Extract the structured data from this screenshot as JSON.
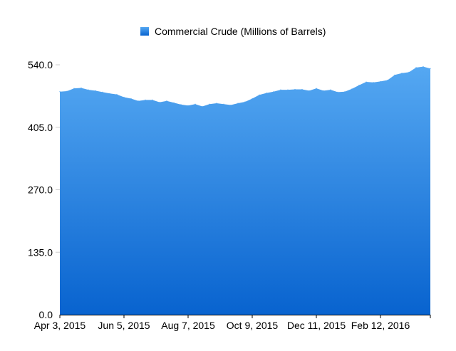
{
  "chart_data": {
    "type": "area",
    "title": "",
    "xlabel": "",
    "ylabel": "",
    "legend": {
      "label": "Commercial Crude (Millions of Barrels)",
      "placement": "top-center"
    },
    "colors": {
      "fill_top": "#55a8f2",
      "fill_bottom": "#0863cf",
      "axis": "#000000",
      "text": "#000000"
    },
    "ylim": [
      0,
      540
    ],
    "y_ticks": [
      "0.0",
      "135.0",
      "270.0",
      "405.0",
      "540.0"
    ],
    "x_ticks": [
      {
        "label": "Apr 3, 2015",
        "index": 0
      },
      {
        "label": "Jun 5, 2015",
        "index": 9
      },
      {
        "label": "Aug 7, 2015",
        "index": 18
      },
      {
        "label": "Oct 9, 2015",
        "index": 27
      },
      {
        "label": "Dec 11, 2015",
        "index": 36
      },
      {
        "label": "Feb 12, 2016",
        "index": 45
      }
    ],
    "series": [
      {
        "values": [
          482,
          483,
          489,
          490,
          486,
          484,
          481,
          478,
          476,
          470,
          467,
          462,
          464,
          464,
          459,
          462,
          458,
          454,
          452,
          455,
          450,
          455,
          457,
          455,
          453,
          457,
          460,
          467,
          475,
          479,
          482,
          486,
          486,
          487,
          487,
          484,
          489,
          484,
          486,
          481,
          482,
          488,
          496,
          503,
          502,
          504,
          507,
          518,
          522,
          524,
          534,
          536,
          532
        ]
      }
    ]
  }
}
